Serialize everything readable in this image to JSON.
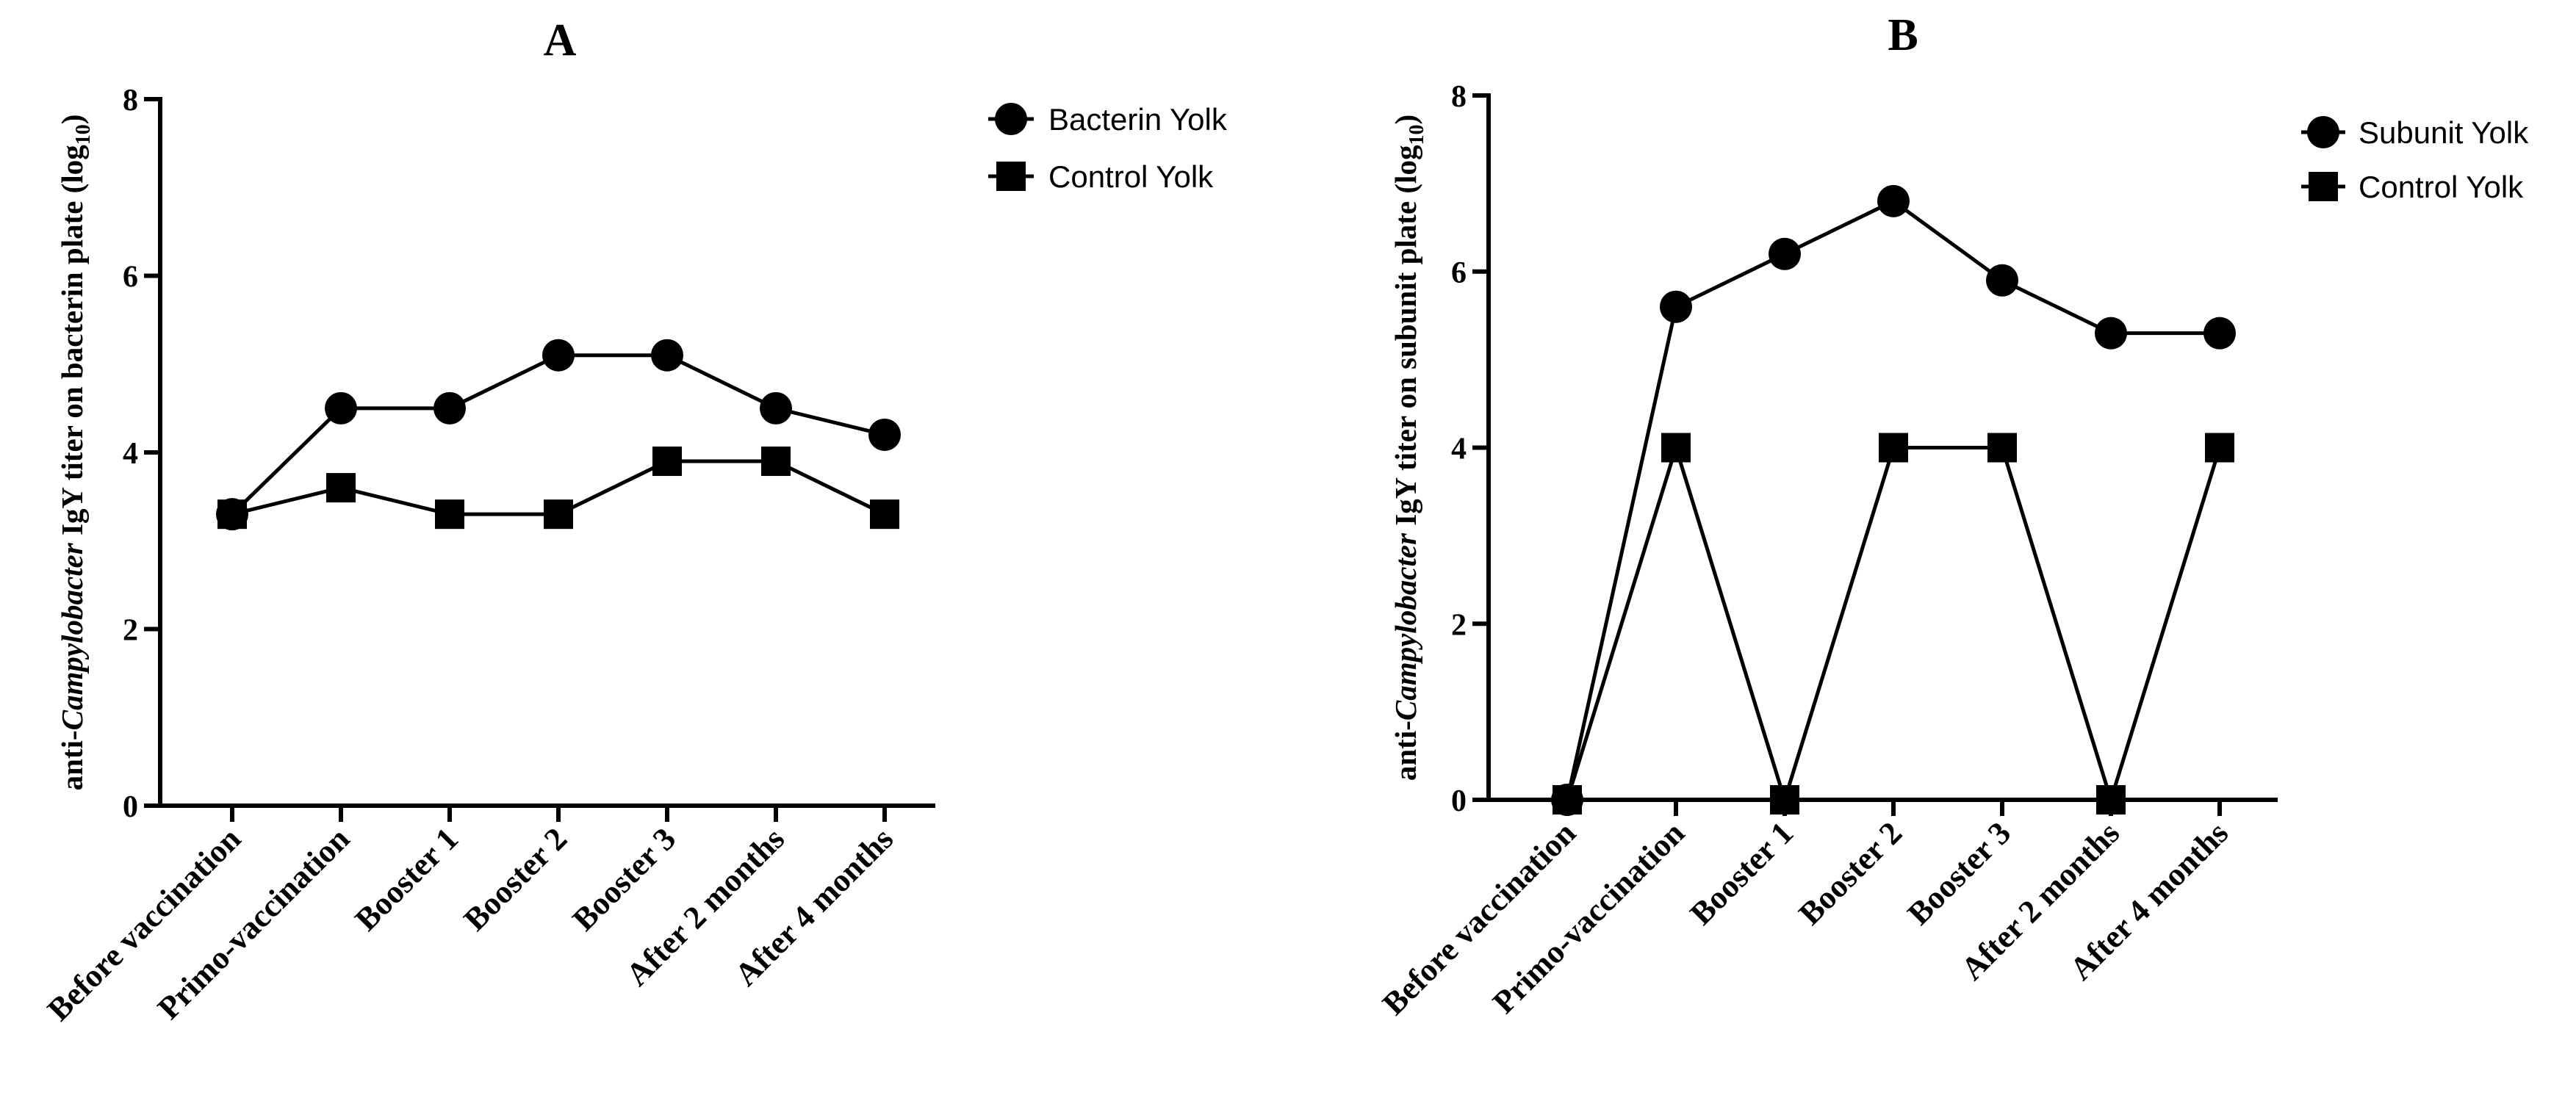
{
  "chart_data": [
    {
      "type": "line",
      "title": "A",
      "ylabel_prefix": "anti-",
      "ylabel_italic": "Campylobacter",
      "ylabel_middle": " IgY titer on bacterin plate (log",
      "ylabel_sub": "10",
      "ylabel_suffix": ")",
      "ylim": [
        0,
        8
      ],
      "yticks": [
        "0",
        "2",
        "4",
        "6",
        "8"
      ],
      "categories": [
        "Before vaccination",
        "Primo-vaccination",
        "Booster 1",
        "Booster 2",
        "Booster 3",
        "After 2 months",
        "After 4 months"
      ],
      "series": [
        {
          "name": "Bacterin Yolk",
          "marker": "circle",
          "values": [
            3.3,
            4.5,
            4.5,
            5.1,
            5.1,
            4.5,
            4.2
          ]
        },
        {
          "name": "Control Yolk",
          "marker": "square",
          "values": [
            3.3,
            3.6,
            3.3,
            3.3,
            3.9,
            3.9,
            3.3
          ]
        }
      ]
    },
    {
      "type": "line",
      "title": "B",
      "ylabel_prefix": "anti-",
      "ylabel_italic": "Campylobacter",
      "ylabel_middle": " IgY titer on subunit plate (log",
      "ylabel_sub": "10",
      "ylabel_suffix": ")",
      "ylim": [
        0,
        8
      ],
      "yticks": [
        "0",
        "2",
        "4",
        "6",
        "8"
      ],
      "categories": [
        "Before vaccination",
        "Primo-vaccination",
        "Booster 1",
        "Booster 2",
        "Booster 3",
        "After 2 months",
        "After 4 months"
      ],
      "series": [
        {
          "name": "Subunit Yolk",
          "marker": "circle",
          "values": [
            0,
            5.6,
            6.2,
            6.8,
            5.9,
            5.3,
            5.3
          ]
        },
        {
          "name": "Control Yolk",
          "marker": "square",
          "values": [
            0,
            4.0,
            0,
            4.0,
            4.0,
            0,
            4.0
          ]
        }
      ]
    }
  ]
}
